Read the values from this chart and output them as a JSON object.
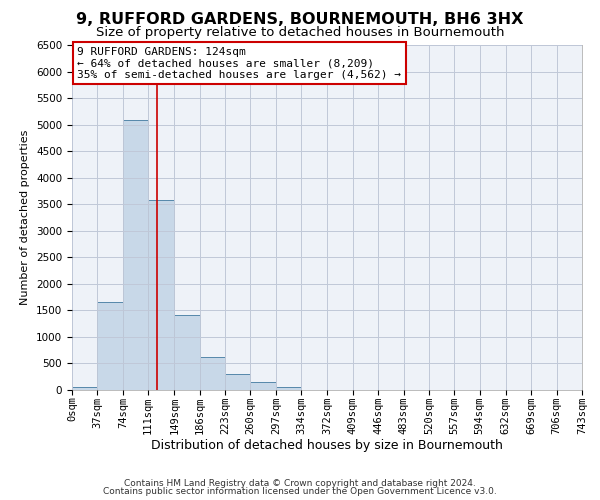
{
  "title": "9, RUFFORD GARDENS, BOURNEMOUTH, BH6 3HX",
  "subtitle": "Size of property relative to detached houses in Bournemouth",
  "xlabel": "Distribution of detached houses by size in Bournemouth",
  "ylabel": "Number of detached properties",
  "bin_edges": [
    0,
    37,
    74,
    111,
    149,
    186,
    223,
    260,
    297,
    334,
    372,
    409,
    446,
    483,
    520,
    557,
    594,
    632,
    669,
    706,
    743
  ],
  "bar_heights": [
    50,
    1650,
    5080,
    3580,
    1420,
    620,
    300,
    150,
    60,
    0,
    0,
    0,
    0,
    0,
    0,
    0,
    0,
    0,
    0,
    0
  ],
  "bar_color": "#c8d8e8",
  "bar_edgecolor": "#5588aa",
  "property_line_x": 124,
  "property_line_color": "#cc0000",
  "ylim": [
    0,
    6500
  ],
  "yticks": [
    0,
    500,
    1000,
    1500,
    2000,
    2500,
    3000,
    3500,
    4000,
    4500,
    5000,
    5500,
    6000,
    6500
  ],
  "annotation_title": "9 RUFFORD GARDENS: 124sqm",
  "annotation_line1": "← 64% of detached houses are smaller (8,209)",
  "annotation_line2": "35% of semi-detached houses are larger (4,562) →",
  "annotation_box_color": "#ffffff",
  "annotation_box_edgecolor": "#cc0000",
  "footnote1": "Contains HM Land Registry data © Crown copyright and database right 2024.",
  "footnote2": "Contains public sector information licensed under the Open Government Licence v3.0.",
  "bg_color": "#ffffff",
  "plot_bg_color": "#eef2f8",
  "grid_color": "#c0c8d8",
  "title_fontsize": 11.5,
  "subtitle_fontsize": 9.5,
  "xlabel_fontsize": 9,
  "ylabel_fontsize": 8,
  "tick_label_fontsize": 7.5,
  "annotation_fontsize": 8,
  "footnote_fontsize": 6.5
}
